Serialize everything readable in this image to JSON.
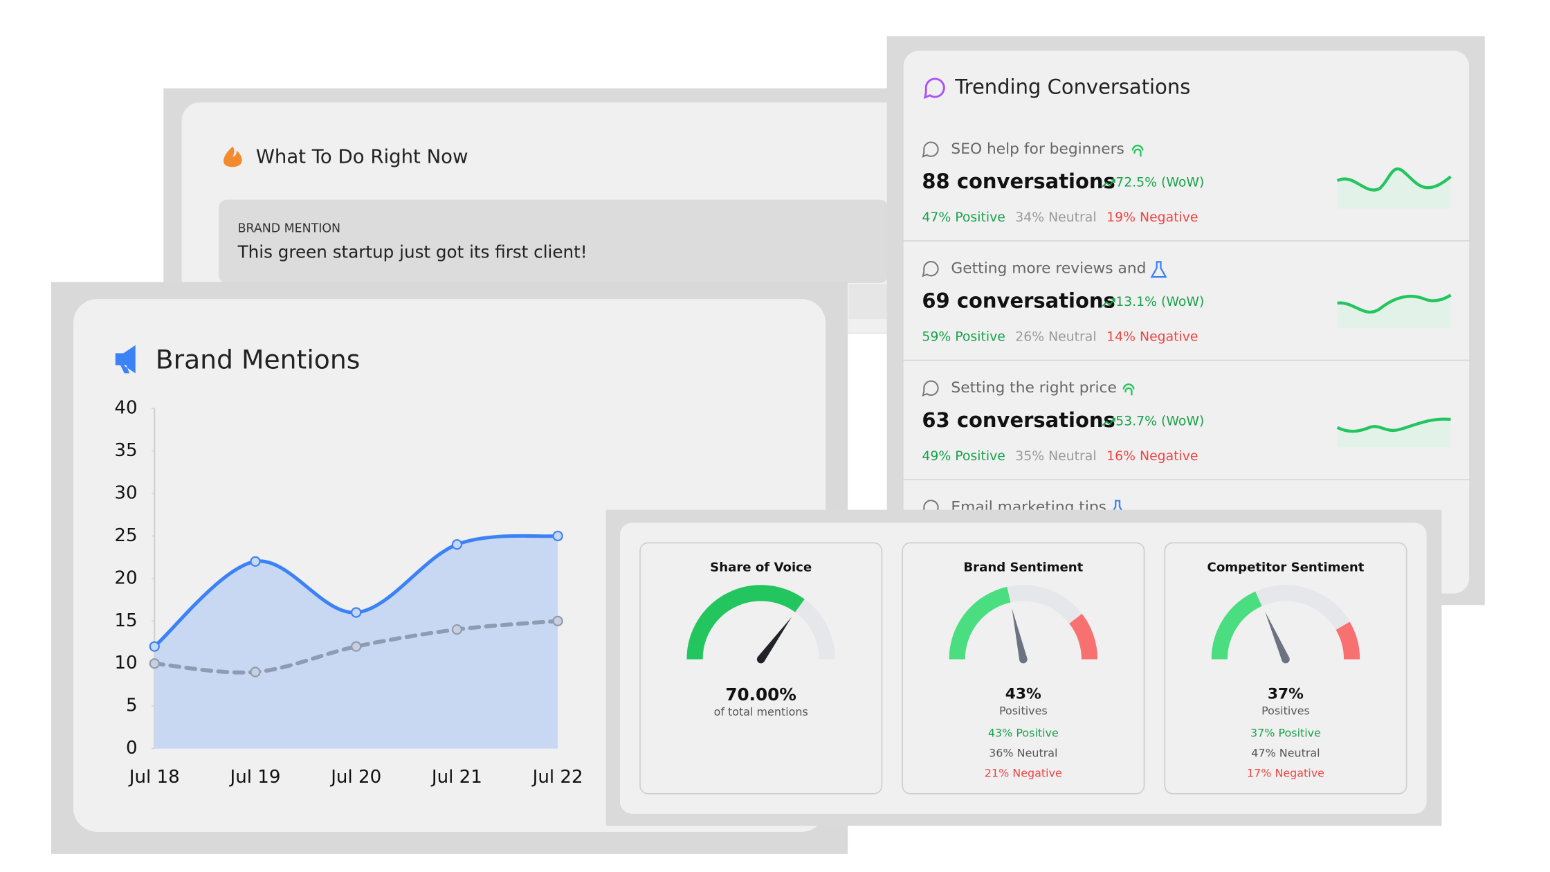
{
  "todo": {
    "title": "What To Do Right Now",
    "items": [
      {
        "label": "BRAND MENTION",
        "text": "This green startup just got its first client!"
      }
    ]
  },
  "brand_mentions": {
    "type": "line",
    "title": "Brand Mentions",
    "categories": [
      "Jul 18",
      "Jul 19",
      "Jul 20",
      "Jul 21",
      "Jul 22"
    ],
    "ylim": [
      0,
      40
    ],
    "yticks": [
      0,
      5,
      10,
      15,
      20,
      25,
      30,
      35,
      40
    ],
    "series": [
      {
        "color": "#3b82f6",
        "fill": "#c9d8f2",
        "values": [
          12,
          22,
          16,
          24,
          25
        ]
      },
      {
        "color": "#8e9bb3",
        "dashed": true,
        "values": [
          10,
          9,
          12,
          14,
          15
        ]
      }
    ]
  },
  "trending": {
    "title": "Trending Conversations",
    "items": [
      {
        "topic": "SEO help for beginners",
        "count": "88 conversations",
        "change": "72.5% (WoW)",
        "positive": "47% Positive",
        "neutral": "34% Neutral",
        "negative": "19% Negative"
      },
      {
        "topic": "Getting more reviews and",
        "count": "69 conversations",
        "change": "13.1% (WoW)",
        "positive": "59% Positive",
        "neutral": "26% Neutral",
        "negative": "14% Negative"
      },
      {
        "topic": "Setting the right price",
        "count": "63 conversations",
        "change": "53.7% (WoW)",
        "positive": "49% Positive",
        "neutral": "35% Neutral",
        "negative": "16% Negative"
      },
      {
        "topic": "Email marketing tips"
      }
    ]
  },
  "gauges": [
    {
      "title": "Share of Voice",
      "value": 70,
      "value_label": "70.00%",
      "caption": "of total mentions",
      "color": "#22c55e",
      "needle": "#1f2328"
    },
    {
      "title": "Brand Sentiment",
      "value": 43,
      "value_label": "43%",
      "caption": "Positives",
      "needle": "#6b7280",
      "segments": [
        {
          "value": 43,
          "label": "43% Positive",
          "color": "#4ade80",
          "text_color": "#16a34a"
        },
        {
          "value": 36,
          "label": "36% Neutral",
          "color": "#e5e7eb",
          "text_color": "#555555"
        },
        {
          "value": 21,
          "label": "21% Negative",
          "color": "#f87171",
          "text_color": "#ef4444"
        }
      ]
    },
    {
      "title": "Competitor Sentiment",
      "value": 37,
      "value_label": "37%",
      "caption": "Positives",
      "needle": "#6b7280",
      "segments": [
        {
          "value": 37,
          "label": "37% Positive",
          "color": "#4ade80",
          "text_color": "#16a34a"
        },
        {
          "value": 47,
          "label": "47% Neutral",
          "color": "#e5e7eb",
          "text_color": "#555555"
        },
        {
          "value": 17,
          "label": "17% Negative",
          "color": "#f87171",
          "text_color": "#ef4444"
        }
      ]
    }
  ]
}
